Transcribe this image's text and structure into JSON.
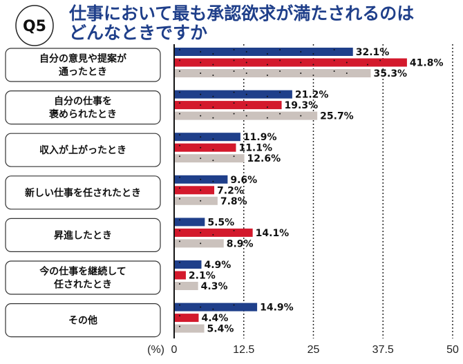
{
  "badge": "Q5",
  "title_lines": [
    "仕事において最も承認欲求が満たされるのは",
    "どんなときですか"
  ],
  "colors": {
    "blue": "#1f3f8a",
    "red": "#d3192c",
    "gray": "#cbc2bd"
  },
  "chart_data": {
    "type": "bar",
    "orientation": "horizontal",
    "title": "仕事において最も承認欲求が満たされるのはどんなときですか",
    "xlabel": "(%)",
    "xlim": [
      0,
      50
    ],
    "xticks": [
      "0",
      "12.5",
      "25",
      "37.5",
      "50"
    ],
    "grid": "dotted vertical",
    "legend": "none",
    "categories": [
      [
        "自分の意見や提案が",
        "通ったとき"
      ],
      [
        "自分の仕事を",
        "褒められたとき"
      ],
      [
        "収入が上がったとき"
      ],
      [
        "新しい仕事を任されたとき"
      ],
      [
        "昇進したとき"
      ],
      [
        "今の仕事を継続して",
        "任されたとき"
      ],
      [
        "その他"
      ]
    ],
    "series": [
      {
        "color": "#1f3f8a",
        "values": [
          32.1,
          21.2,
          11.9,
          9.6,
          5.5,
          4.9,
          14.9
        ]
      },
      {
        "color": "#d3192c",
        "values": [
          41.8,
          19.3,
          11.1,
          7.2,
          14.1,
          2.1,
          4.4
        ]
      },
      {
        "color": "#cbc2bd",
        "values": [
          35.3,
          25.7,
          12.6,
          7.8,
          8.9,
          4.3,
          5.4
        ]
      }
    ]
  }
}
